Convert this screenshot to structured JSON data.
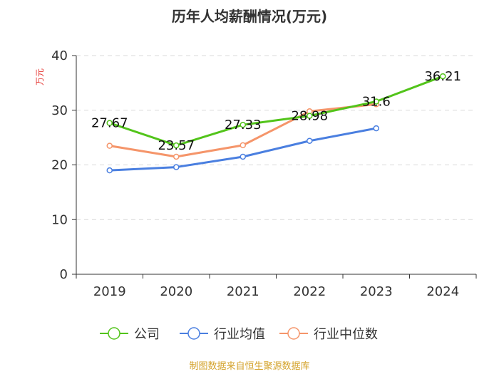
{
  "chart_data": {
    "type": "line",
    "title": "历年人均薪酬情况(万元)",
    "ylabel": "万元",
    "categories": [
      "2019",
      "2020",
      "2021",
      "2022",
      "2023",
      "2024"
    ],
    "ylim": [
      0,
      40
    ],
    "yticks": [
      0,
      10,
      20,
      30,
      40
    ],
    "grid": true,
    "legend_position": "bottom",
    "series": [
      {
        "name": "公司",
        "color": "#52c41a",
        "values": [
          27.67,
          23.57,
          27.33,
          28.98,
          31.6,
          36.21
        ],
        "labels": [
          "27.67",
          "23.57",
          "27.33",
          "28.98",
          "31.6",
          "36.21"
        ]
      },
      {
        "name": "行业均值",
        "color": "#4a7fe0",
        "values": [
          19.0,
          19.6,
          21.5,
          24.4,
          26.7,
          null
        ]
      },
      {
        "name": "行业中位数",
        "color": "#f5956a",
        "values": [
          23.5,
          21.5,
          23.6,
          29.8,
          31.1,
          null
        ]
      }
    ],
    "unit_color": "#e53935"
  },
  "source": {
    "text": "制图数据来自恒生聚源数据库",
    "color": "#d4a32c"
  }
}
